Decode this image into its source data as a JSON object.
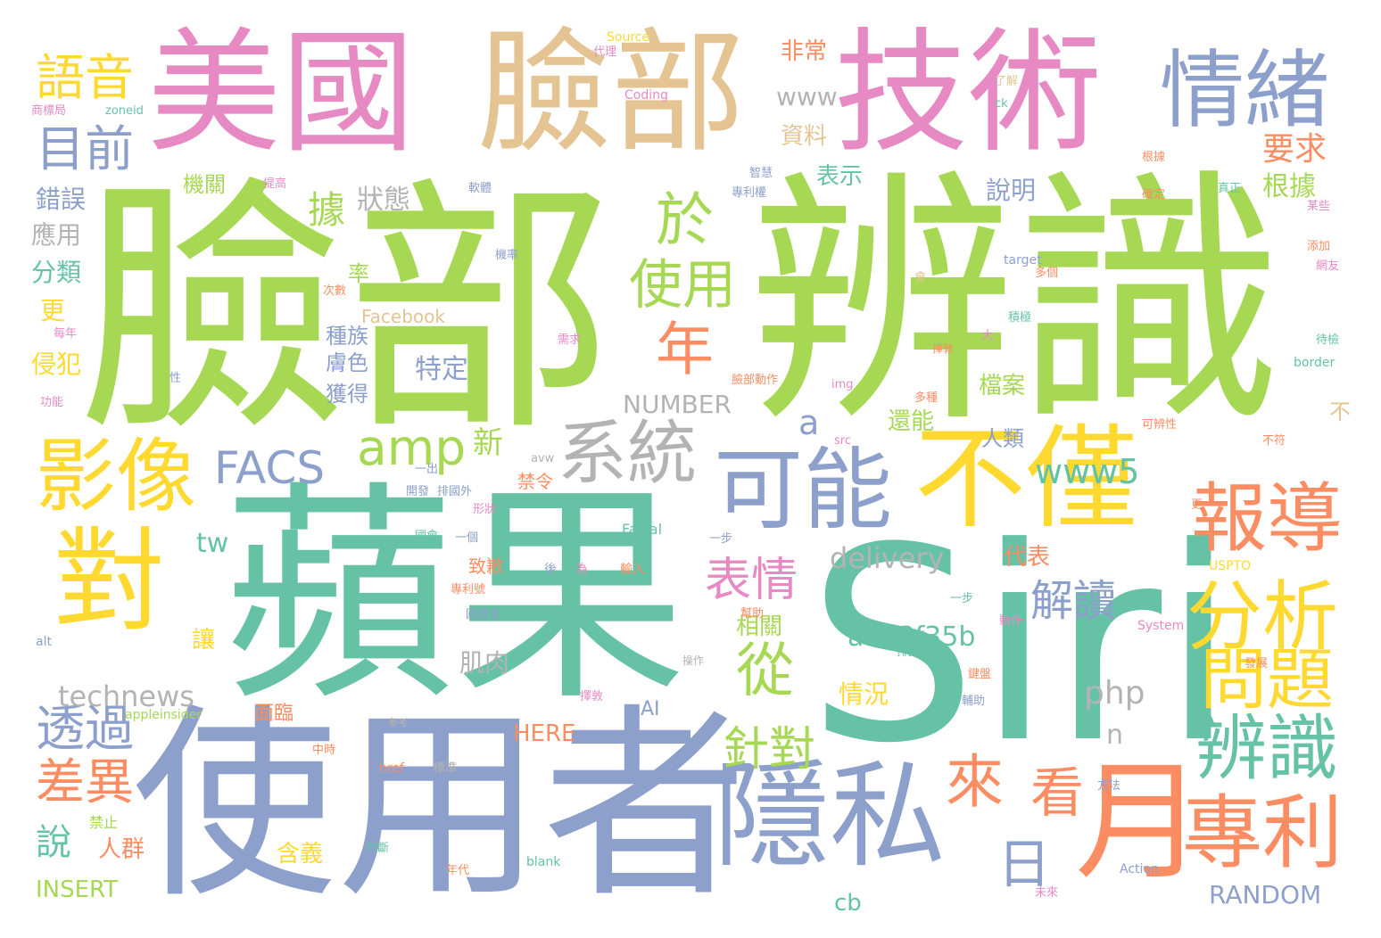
{
  "colors": {
    "green": "#a6d854",
    "teal": "#66c2a5",
    "blue": "#8da0cb",
    "pink": "#e78ac3",
    "tan": "#e5c494",
    "yellow": "#ffd92f",
    "orange": "#fc8d62",
    "grey": "#b3b3b3"
  },
  "words": {
    "w1": "臉部",
    "w2": "辨識",
    "w3": "蘋果",
    "w4": "Siri",
    "w5": "使用者",
    "w6": "美國",
    "w7": "臉部",
    "w8": "技術",
    "w9": "情緒",
    "w10": "不僅",
    "w11": "對",
    "w12": "影像",
    "w13": "可能",
    "w14": "隱私",
    "w15": "月",
    "w16": "系統",
    "w17": "報導",
    "w18": "分析",
    "w19": "專利",
    "w20": "辨識",
    "w21": "問題",
    "w22": "語音",
    "w23": "目前",
    "w24": "FACS",
    "w25": "amp",
    "w26": "於",
    "w27": "使用",
    "w28": "年",
    "w29": "從",
    "w30": "來",
    "w31": "看",
    "w32": "透過",
    "w33": "差異",
    "w34": "表情",
    "w35": "針對",
    "w36": "解讀",
    "w37": "www5",
    "w38": "delivery",
    "w39": "a4b3f35b",
    "w40": "technews",
    "w41": "php",
    "w42": "要求",
    "w43": "根據",
    "w44": "說明",
    "w45": "狀態",
    "w46": "據",
    "w47": "錯誤",
    "w48": "應用",
    "w49": "分類",
    "w50": "更",
    "w51": "侵犯",
    "w52": "www",
    "w53": "非常",
    "w54": "資料",
    "w55": "表示",
    "w56": "特定",
    "w57": "種族",
    "w58": "膚色",
    "w59": "獲得",
    "w60": "率",
    "w61": "機關",
    "w62": "NUMBER",
    "w63": "a",
    "w64": "還能",
    "w65": "檔案",
    "w66": "人類",
    "w67": "新",
    "w68": "tw",
    "w69": "禁令",
    "w70": "代表",
    "w71": "相關",
    "w72": "肌肉",
    "w73": "讓",
    "w74": "情況",
    "w75": "n",
    "w76": "AI",
    "w77": "HERE",
    "w78": "說",
    "w79": "人群",
    "w80": "含義",
    "w81": "INSERT",
    "w82": "日",
    "w83": "cb",
    "w84": "RANDOM",
    "w85": "不",
    "w86": "面臨",
    "w87": "Facebook",
    "w88": "Source",
    "w89": "Coding",
    "w90": "zoneid",
    "w91": "Facial",
    "w92": "USPTO",
    "w93": "target",
    "w94": "border",
    "w95": "appleinsider",
    "w96": "System",
    "w97": "Action",
    "w98": "href",
    "w99": "blank",
    "w100": "src",
    "w101": "img",
    "w102": "alt",
    "w103": "avw",
    "w104": "ck",
    "w105": "一步",
    "w106": "輸入",
    "w107": "後",
    "w108": "為",
    "w109": "禁止",
    "w110": "未來",
    "w111": "方法",
    "w112": "參考",
    "w113": "標準",
    "w114": "判斷",
    "w115": "年代",
    "w116": "智慧",
    "w117": "專利權",
    "w118": "軟體",
    "w119": "機率",
    "w120": "大",
    "w121": "積極",
    "w122": "多個",
    "w123": "會",
    "w124": "一出",
    "w125": "開發",
    "w126": "排國外",
    "w127": "形狀",
    "w128": "國會",
    "w129": "一個",
    "w130": "致歉",
    "w131": "專利號",
    "w132": "操作",
    "w133": "擇敦",
    "w134": "中時",
    "w135": "國曆會",
    "w136": "動作",
    "w137": "排美國",
    "w138": "一步",
    "w139": "擇敦",
    "w140": "次數",
    "w141": "需求",
    "w142": "臉部動作",
    "w143": "多種",
    "w144": "可辨性",
    "w145": "不符",
    "w146": "真正",
    "w147": "根據",
    "w148": "確定",
    "w149": "某些",
    "w150": "添加",
    "w151": "網友",
    "w152": "待檢",
    "w153": "提高",
    "w154": "代理",
    "w155": "商標局",
    "w156": "了解",
    "w157": "幫助",
    "w158": "輔助",
    "w159": "發展",
    "w160": "鍵盤",
    "w161": "功能",
    "w162": "每年",
    "w163": "性",
    "w164": "更"
  }
}
